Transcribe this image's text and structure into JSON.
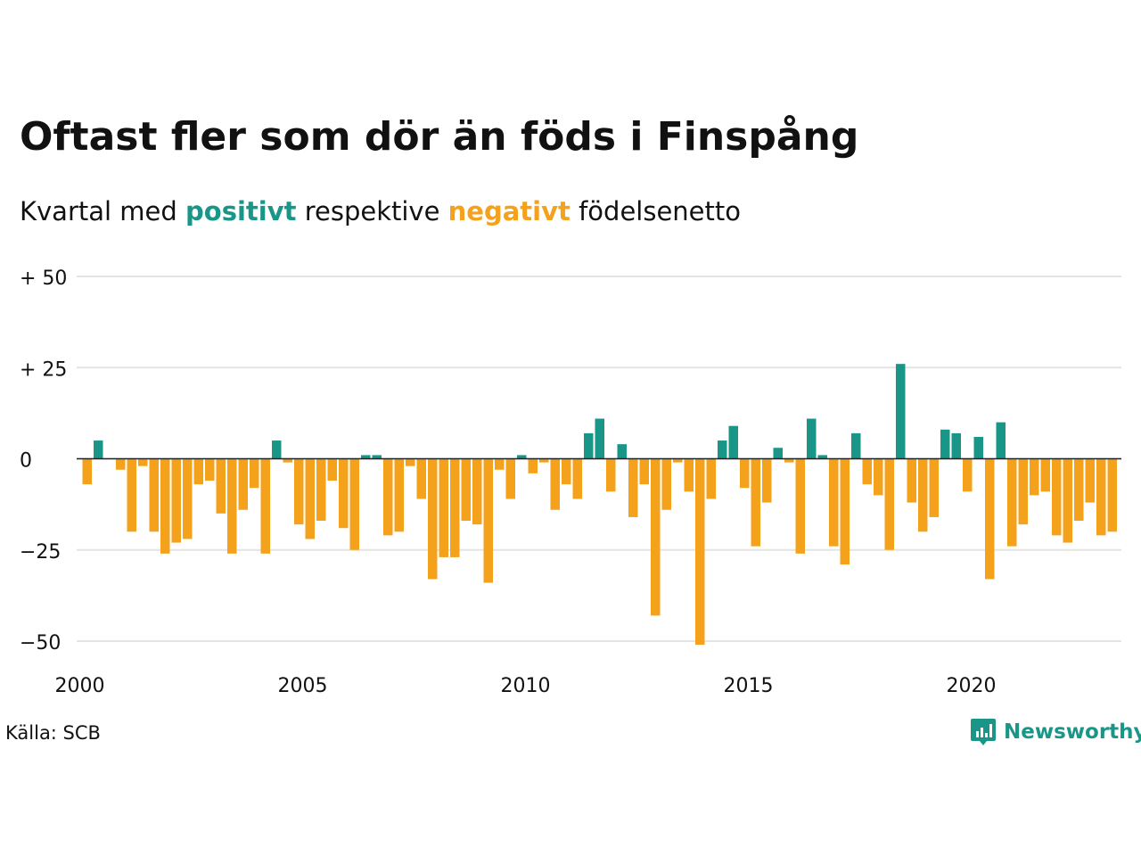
{
  "title": "Oftast fler som dör än föds i Finspång",
  "subtitle": {
    "prefix": "Kvartal med",
    "positive_word": "positivt",
    "middle": "respektive",
    "negative_word": "negativt",
    "suffix": "födelsenetto"
  },
  "source": "Källa: SCB",
  "brand": {
    "name": "Newsworthy",
    "logo_icon": "newsworthy-logo-icon"
  },
  "colors": {
    "positive": "#1a9688",
    "negative": "#f4a21c",
    "grid": "#e4e4e4",
    "text": "#111111"
  },
  "chart_data": {
    "type": "bar",
    "start": "2000 Q1",
    "ylim": [
      -50,
      50
    ],
    "y_ticks": [
      {
        "value": 50,
        "label": "+ 50"
      },
      {
        "value": 25,
        "label": "+ 25"
      },
      {
        "value": 0,
        "label": "0"
      },
      {
        "value": -25,
        "label": "−25"
      },
      {
        "value": -50,
        "label": "−50"
      }
    ],
    "x_ticks": [
      "2000",
      "2005",
      "2010",
      "2015",
      "2020"
    ],
    "grid": true,
    "values": [
      -7,
      5,
      0,
      -3,
      -20,
      -2,
      -20,
      -26,
      -23,
      -22,
      -7,
      -6,
      -15,
      -26,
      -14,
      -8,
      -26,
      5,
      -1,
      -18,
      -22,
      -17,
      -6,
      -19,
      -25,
      1,
      1,
      -21,
      -20,
      -2,
      -11,
      -33,
      -27,
      -27,
      -17,
      -18,
      -34,
      -3,
      -11,
      1,
      -4,
      -1,
      -14,
      -7,
      -11,
      7,
      11,
      -9,
      4,
      -16,
      -7,
      -43,
      -14,
      -1,
      -9,
      -51,
      -11,
      5,
      9,
      -8,
      -24,
      -12,
      3,
      -1,
      -26,
      11,
      1,
      -24,
      -29,
      7,
      -7,
      -10,
      -25,
      26,
      -12,
      -20,
      -16,
      8,
      7,
      -9,
      6,
      -33,
      10,
      -24,
      -18,
      -10,
      -9,
      -21,
      -23,
      -17,
      -12,
      -21,
      -20
    ]
  }
}
